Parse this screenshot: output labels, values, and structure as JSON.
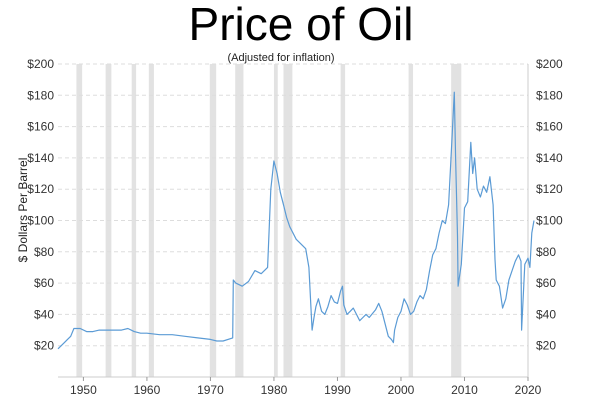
{
  "chart_data": {
    "type": "line",
    "title": "Price of Oil",
    "subtitle": "(Adjusted for inflation)",
    "ylabel": "$ Dollars Per Barrel",
    "xlabel": "",
    "xlim": [
      1946,
      2020
    ],
    "ylim": [
      0,
      200
    ],
    "grid": true,
    "y_ticks": [
      {
        "value": 20,
        "label": "$20"
      },
      {
        "value": 40,
        "label": "$40"
      },
      {
        "value": 60,
        "label": "$60"
      },
      {
        "value": 80,
        "label": "$80"
      },
      {
        "value": 100,
        "label": "$100"
      },
      {
        "value": 120,
        "label": "$120"
      },
      {
        "value": 140,
        "label": "$140"
      },
      {
        "value": 160,
        "label": "$160"
      },
      {
        "value": 180,
        "label": "$180"
      },
      {
        "value": 200,
        "label": "$200"
      }
    ],
    "x_ticks": [
      {
        "value": 1950,
        "label": "1950"
      },
      {
        "value": 1960,
        "label": "1960"
      },
      {
        "value": 1970,
        "label": "1970"
      },
      {
        "value": 1980,
        "label": "1980"
      },
      {
        "value": 1990,
        "label": "1990"
      },
      {
        "value": 2000,
        "label": "2000"
      },
      {
        "value": 2010,
        "label": "2010"
      },
      {
        "value": 2020,
        "label": "2020"
      }
    ],
    "recessions": [
      [
        1948.9,
        1949.8
      ],
      [
        1953.5,
        1954.4
      ],
      [
        1957.6,
        1958.3
      ],
      [
        1960.3,
        1961.1
      ],
      [
        1969.9,
        1970.9
      ],
      [
        1973.9,
        1975.2
      ],
      [
        1980.0,
        1980.6
      ],
      [
        1981.5,
        1982.9
      ],
      [
        1990.5,
        1991.2
      ],
      [
        2001.2,
        2001.9
      ],
      [
        2007.9,
        2009.5
      ]
    ],
    "series": [
      {
        "color": "#5b9bd5",
        "x": [
          1946.0,
          1946.5,
          1947.0,
          1947.5,
          1948.0,
          1948.5,
          1949.5,
          1950.5,
          1951.5,
          1952.5,
          1953.0,
          1954.0,
          1955.0,
          1956.0,
          1957.0,
          1958.0,
          1959.0,
          1960.0,
          1962.0,
          1964.0,
          1966.0,
          1968.0,
          1970.0,
          1971.0,
          1972.0,
          1973.5,
          1973.6,
          1974.0,
          1975.0,
          1976.0,
          1977.0,
          1978.0,
          1979.0,
          1979.5,
          1980.0,
          1980.5,
          1981.0,
          1981.5,
          1982.0,
          1982.5,
          1983.0,
          1983.5,
          1984.0,
          1985.0,
          1985.5,
          1986.0,
          1986.3,
          1986.6,
          1987.0,
          1987.5,
          1988.0,
          1988.5,
          1989.0,
          1989.5,
          1990.0,
          1990.5,
          1990.8,
          1991.0,
          1991.5,
          1992.0,
          1992.5,
          1993.0,
          1993.5,
          1994.0,
          1994.5,
          1995.0,
          1996.0,
          1996.5,
          1997.0,
          1997.5,
          1998.0,
          1998.5,
          1998.8,
          1999.0,
          1999.5,
          2000.0,
          2000.5,
          2001.0,
          2001.5,
          2002.0,
          2002.5,
          2003.0,
          2003.5,
          2004.0,
          2004.5,
          2005.0,
          2005.5,
          2006.0,
          2006.5,
          2007.0,
          2007.5,
          2008.0,
          2008.4,
          2008.6,
          2008.9,
          2009.0,
          2009.5,
          2010.0,
          2010.5,
          2011.0,
          2011.3,
          2011.6,
          2012.0,
          2012.5,
          2013.0,
          2013.5,
          2014.0,
          2014.5,
          2014.8,
          2015.0,
          2015.5,
          2016.0,
          2016.5,
          2017.0,
          2017.5,
          2018.0,
          2018.5,
          2018.9,
          2019.0,
          2019.5,
          2020.0,
          2020.3,
          2020.6,
          2021.0
        ],
        "values": [
          18,
          20,
          22,
          24,
          26,
          31,
          31,
          29,
          29,
          30,
          30,
          30,
          30,
          30,
          31,
          29,
          28,
          28,
          27,
          27,
          26,
          25,
          24,
          23,
          23,
          25,
          62,
          60,
          58,
          61,
          68,
          66,
          70,
          120,
          138,
          130,
          118,
          110,
          102,
          96,
          92,
          88,
          86,
          82,
          70,
          30,
          38,
          45,
          50,
          42,
          40,
          45,
          52,
          48,
          47,
          55,
          58,
          46,
          40,
          42,
          44,
          40,
          36,
          38,
          40,
          38,
          43,
          47,
          42,
          34,
          26,
          24,
          22,
          30,
          38,
          42,
          50,
          46,
          40,
          42,
          48,
          52,
          50,
          56,
          68,
          78,
          82,
          92,
          100,
          98,
          110,
          150,
          182,
          140,
          90,
          58,
          72,
          108,
          112,
          150,
          130,
          140,
          120,
          115,
          122,
          118,
          128,
          110,
          75,
          62,
          58,
          44,
          50,
          62,
          68,
          74,
          78,
          74,
          30,
          72,
          76,
          70,
          92,
          100
        ]
      }
    ]
  }
}
